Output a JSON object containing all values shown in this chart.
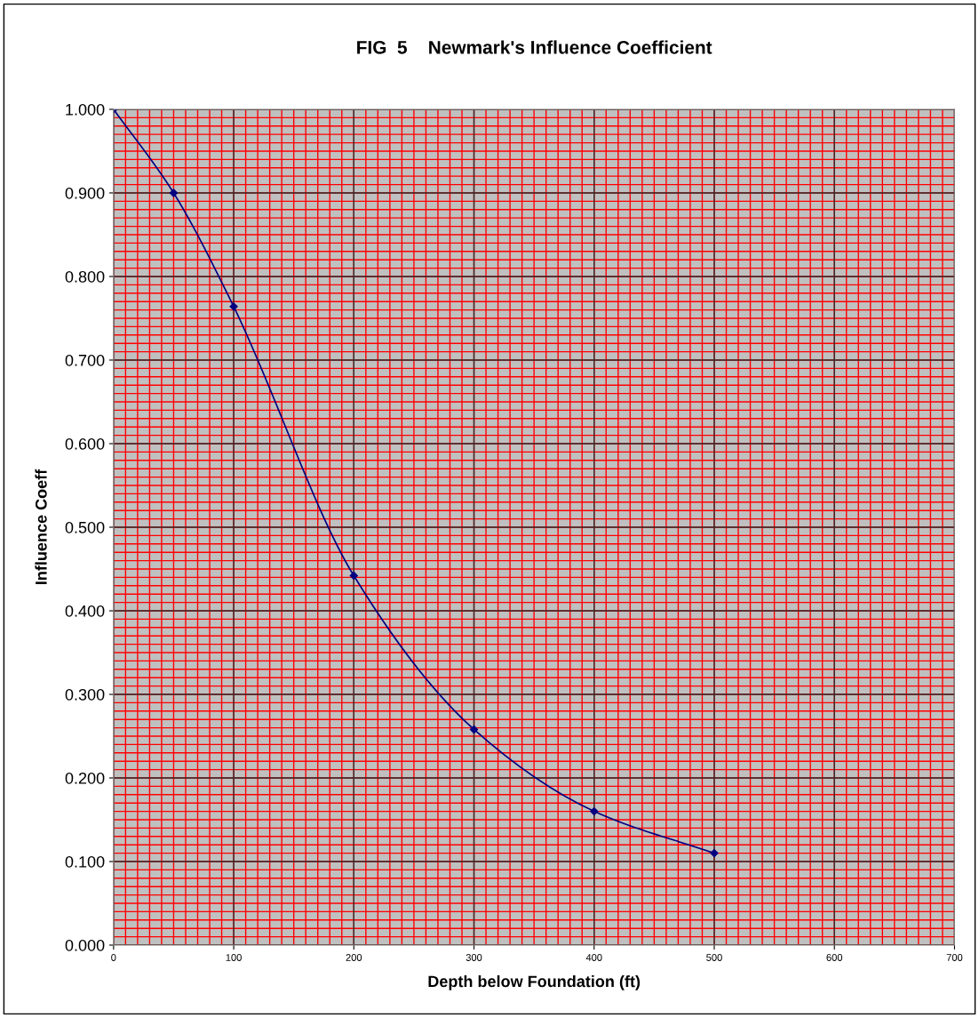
{
  "chart_data": {
    "type": "line",
    "title": "FIG  5    Newmark's Influence Coefficient",
    "xlabel": "Depth below Foundation (ft)",
    "ylabel": "Influence Coeff",
    "x": [
      0,
      50,
      100,
      200,
      300,
      400,
      500
    ],
    "series": [
      {
        "color": "#000080",
        "values": [
          1.0,
          0.9,
          0.764,
          0.442,
          0.258,
          0.16,
          0.11
        ]
      }
    ],
    "xlim": [
      0,
      700
    ],
    "xticks": [
      0,
      100,
      200,
      300,
      400,
      500,
      600,
      700
    ],
    "ylim": [
      0,
      1
    ],
    "yticks": [
      {
        "value": 0,
        "label": "0.000"
      },
      {
        "value": 0.1,
        "label": "0.100"
      },
      {
        "value": 0.2,
        "label": "0.200"
      },
      {
        "value": 0.3,
        "label": "0.300"
      },
      {
        "value": 0.4,
        "label": "0.400"
      },
      {
        "value": 0.5,
        "label": "0.500"
      },
      {
        "value": 0.6,
        "label": "0.600"
      },
      {
        "value": 0.7,
        "label": "0.700"
      },
      {
        "value": 0.8,
        "label": "0.800"
      },
      {
        "value": 0.9,
        "label": "0.900"
      },
      {
        "value": 1,
        "label": "1.000"
      }
    ],
    "grid": true,
    "marker": "diamond",
    "line_style": "solid",
    "legend": false
  }
}
